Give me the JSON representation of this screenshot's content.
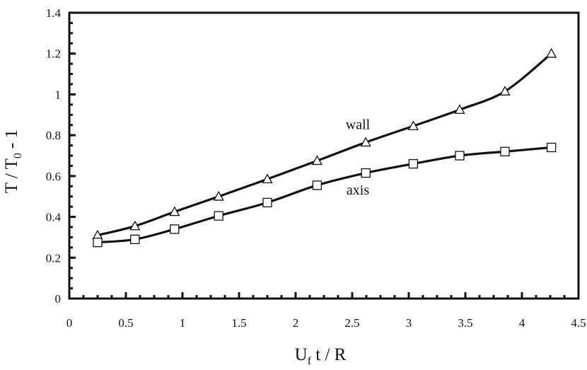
{
  "chart_data": {
    "type": "line",
    "title": "",
    "xlabel": {
      "main": "U",
      "sub": "f",
      "rest": " t / R"
    },
    "ylabel": {
      "main": "T / T",
      "sub": "0",
      "rest": " - 1"
    },
    "xlim": [
      0,
      4.5
    ],
    "ylim": [
      0,
      1.4
    ],
    "xticks": [
      0,
      0.5,
      1,
      1.5,
      2,
      2.5,
      3,
      3.5,
      4,
      4.5
    ],
    "yticks": [
      0,
      0.2,
      0.4,
      0.6,
      0.8,
      1,
      1.2,
      1.4
    ],
    "xtick_labels": [
      "0",
      "0.5",
      "1",
      "1.5",
      "2",
      "2.5",
      "3",
      "3.5",
      "4",
      "4.5"
    ],
    "ytick_labels": [
      "0",
      "0.2",
      "0.4",
      "0.6",
      "0.8",
      "1",
      "1.2",
      "1.4"
    ],
    "grid": false,
    "series": [
      {
        "name": "wall",
        "marker": "triangle",
        "x": [
          0.25,
          0.58,
          0.93,
          1.32,
          1.75,
          2.19,
          2.62,
          3.04,
          3.45,
          3.85,
          4.26
        ],
        "y": [
          0.31,
          0.355,
          0.425,
          0.5,
          0.585,
          0.675,
          0.765,
          0.845,
          0.925,
          1.015,
          1.2
        ]
      },
      {
        "name": "axis",
        "marker": "square",
        "x": [
          0.25,
          0.58,
          0.93,
          1.32,
          1.75,
          2.19,
          2.62,
          3.04,
          3.45,
          3.85,
          4.26
        ],
        "y": [
          0.275,
          0.29,
          0.34,
          0.405,
          0.47,
          0.555,
          0.615,
          0.66,
          0.7,
          0.72,
          0.74
        ]
      }
    ],
    "annotations": [
      {
        "text": "wall",
        "x": 2.55,
        "y": 0.83
      },
      {
        "text": "axis",
        "x": 2.55,
        "y": 0.51
      }
    ]
  }
}
